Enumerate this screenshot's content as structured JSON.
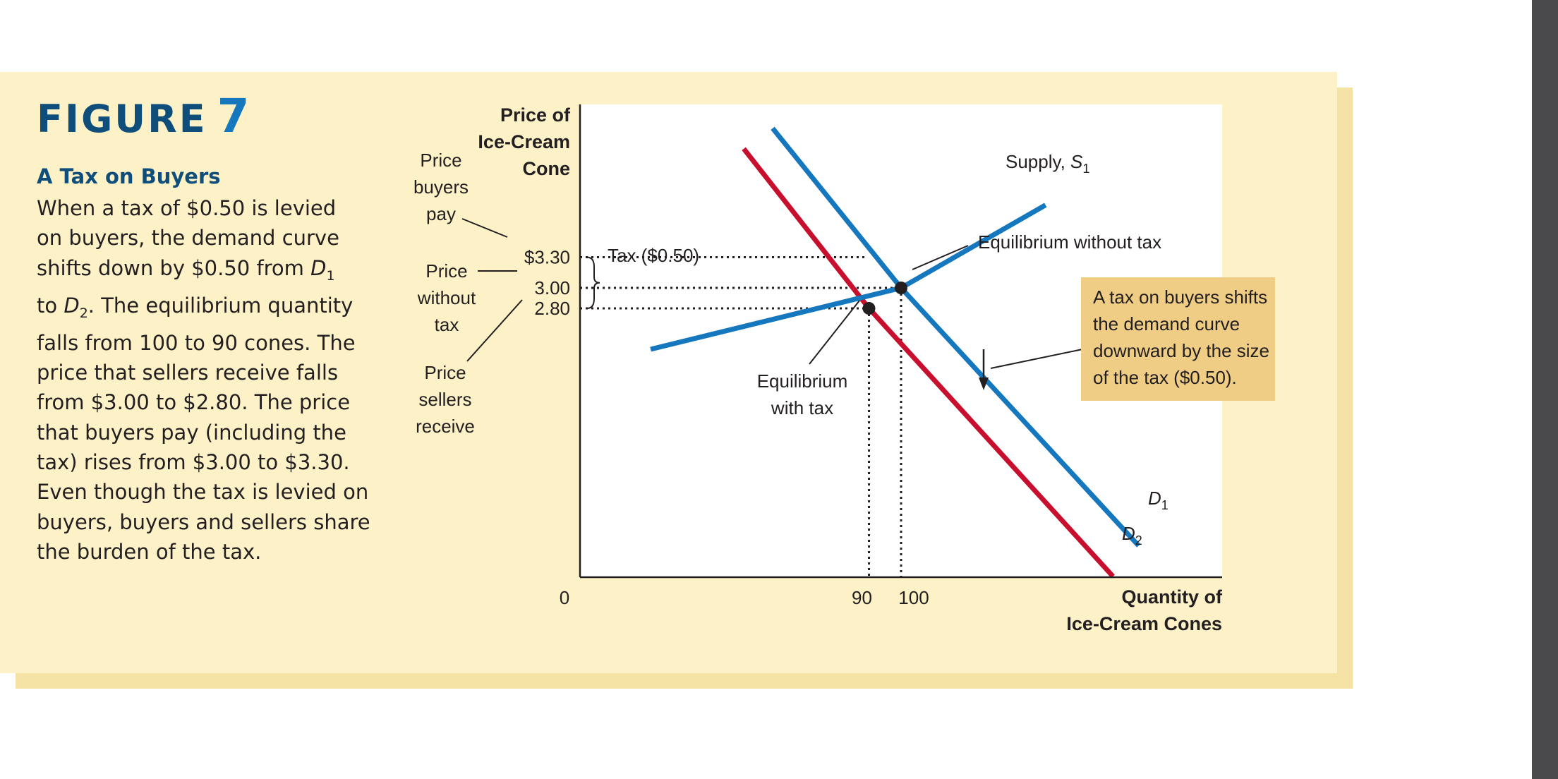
{
  "figure": {
    "label": "FIGURE",
    "number": "7",
    "title": "A Tax on Buyers",
    "caption_lines": [
      "When a tax of $0.50 is levied",
      "on buyers, the demand curve",
      "shifts down by $0.50 from D1",
      "to D2. The equilibrium quantity",
      "falls from 100 to 90 cones. The",
      "price that sellers receive falls",
      "from $3.00 to $2.80. The price",
      "that buyers pay (including the",
      "tax) rises from $3.00 to $3.30.",
      "Even though the tax is levied on",
      "buyers, buyers and sellers share",
      "the burden of the tax."
    ]
  },
  "colors": {
    "panel_background": "#fdf1c7",
    "supply_and_demand_1": "#1577bd",
    "demand_2": "#c8102e",
    "callout_background": "#efcd85",
    "heading": "#0f4e7a"
  },
  "chart_data": {
    "type": "line",
    "ylabel": "Price of Ice-Cream Cone",
    "xlabel": "Quantity of Ice-Cream Cones",
    "origin_label": "0",
    "x_ticks": [
      {
        "value": 90,
        "label": "90"
      },
      {
        "value": 100,
        "label": "100"
      }
    ],
    "y_ticks": [
      {
        "value": 3.3,
        "label": "$3.30"
      },
      {
        "value": 3.0,
        "label": "3.00"
      },
      {
        "value": 2.8,
        "label": "2.80"
      }
    ],
    "series": [
      {
        "key": "supply",
        "label_prefix": "Supply, ",
        "label_italic": "S",
        "label_sub": "1",
        "points": [
          [
            22,
            2.4
          ],
          [
            100,
            3.0
          ],
          [
            145,
            3.81
          ]
        ]
      },
      {
        "key": "demand1",
        "label_italic": "D",
        "label_sub": "1",
        "points": [
          [
            60,
            4.56
          ],
          [
            100,
            3.0
          ],
          [
            174,
            0.48
          ]
        ]
      },
      {
        "key": "demand2",
        "label_italic": "D",
        "label_sub": "2",
        "points": [
          [
            51,
            4.36
          ],
          [
            90,
            2.8
          ],
          [
            166,
            0.18
          ]
        ]
      }
    ],
    "equilibria": [
      {
        "name": "without-tax",
        "x": 100,
        "y": 3.0,
        "label": "Equilibrium without tax"
      },
      {
        "name": "with-tax",
        "x": 90,
        "y": 2.8,
        "label_lines": [
          "Equilibrium",
          "with tax"
        ]
      }
    ],
    "tax_brace_label": "Tax ($0.50)",
    "side_labels": {
      "buyers_pay": [
        "Price",
        "buyers",
        "pay"
      ],
      "without_tax": [
        "Price",
        "without",
        "tax"
      ],
      "sellers_receive": [
        "Price",
        "sellers",
        "receive"
      ]
    },
    "callout_lines": [
      "A tax on buyers shifts",
      "the demand curve",
      "downward by the size",
      "of the tax ($0.50)."
    ]
  }
}
